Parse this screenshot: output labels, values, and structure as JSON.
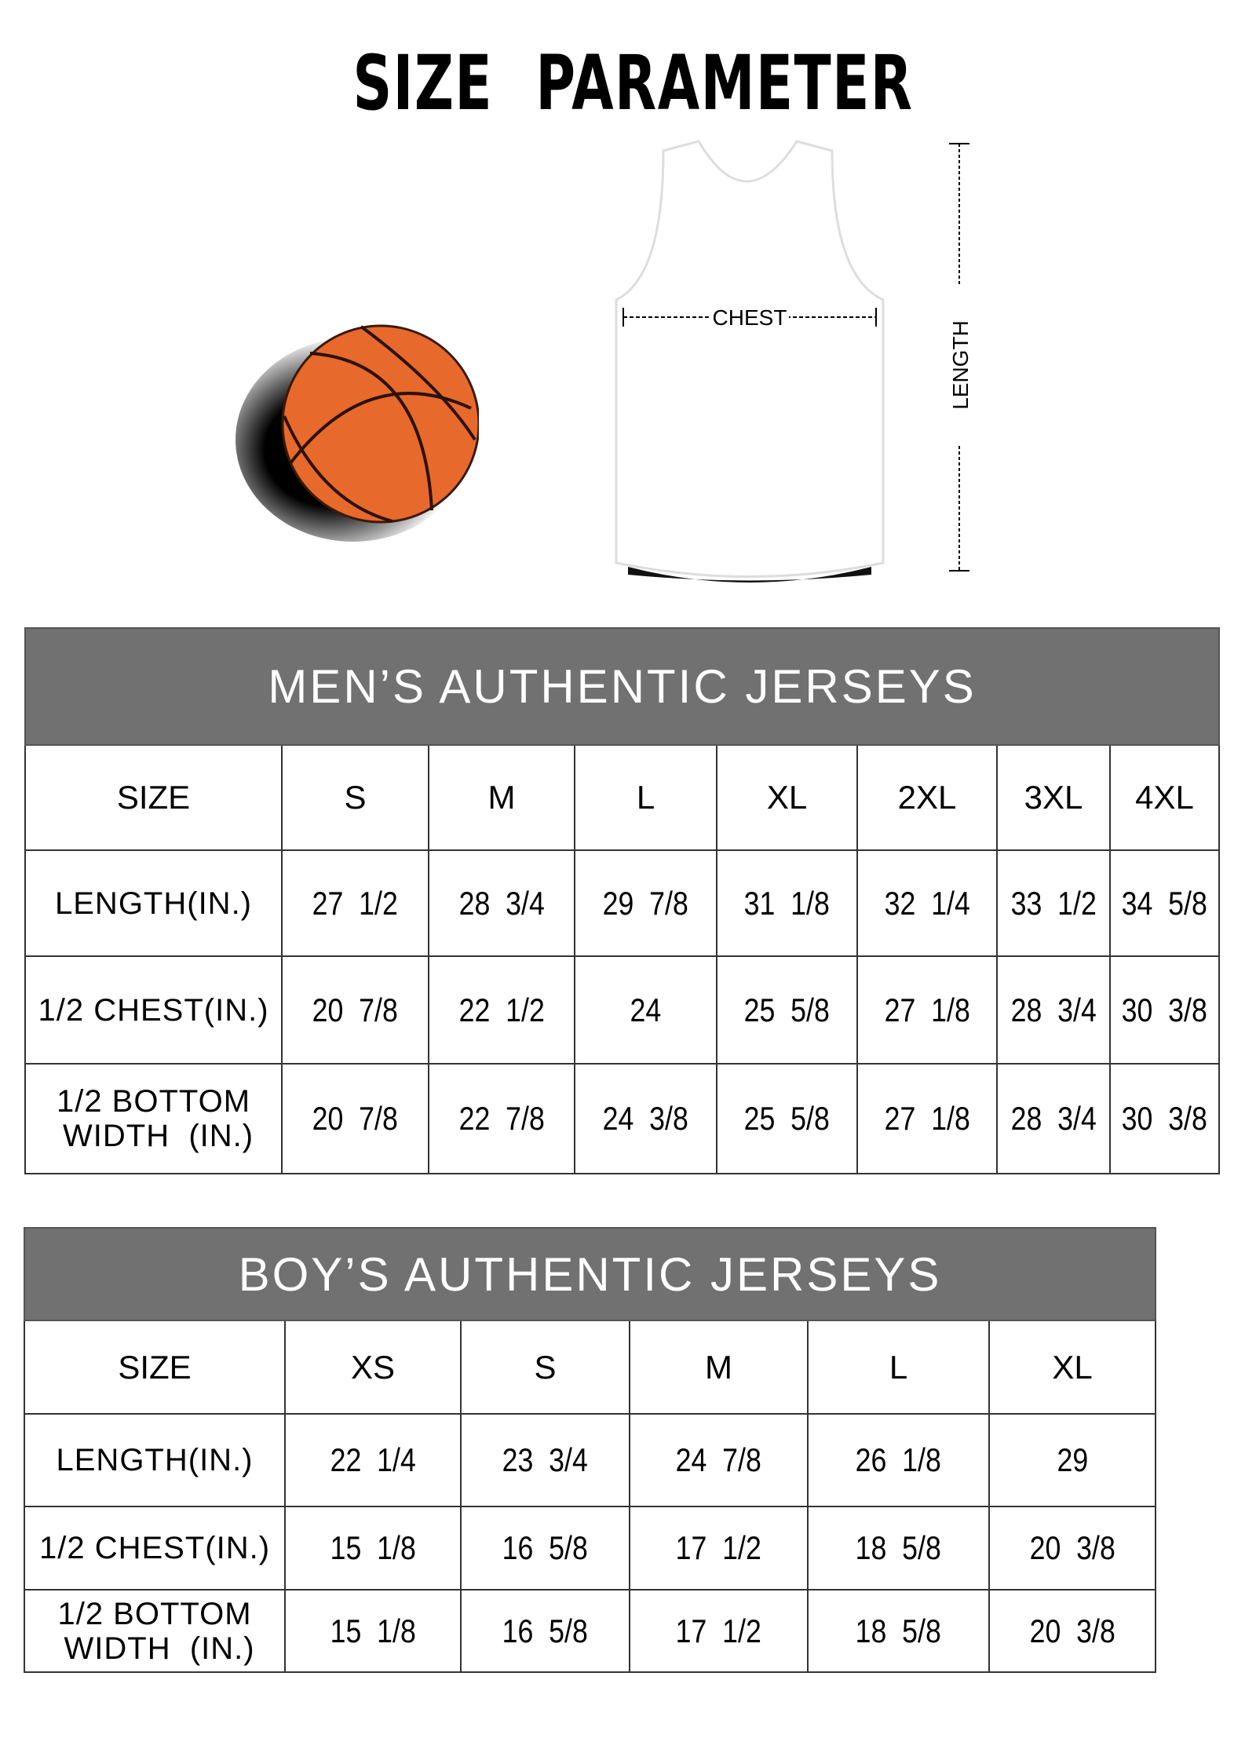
{
  "title": "SIZE PARAMETER",
  "diagram": {
    "chest_label": "CHEST",
    "length_label": "LENGTH",
    "ball_color": "#e8692c"
  },
  "mens": {
    "title": "MEN’S AUTHENTIC JERSEYS",
    "header": [
      "SIZE",
      "S",
      "M",
      "L",
      "XL",
      "2XL",
      "3XL",
      "4XL"
    ],
    "rows": [
      {
        "label": "LENGTH(IN.)",
        "values": [
          "27  1/2",
          "28  3/4",
          "29  7/8",
          "31  1/8",
          "32  1/4",
          "33  1/2",
          "34  5/8"
        ]
      },
      {
        "label": "1/2 CHEST(IN.)",
        "values": [
          "20  7/8",
          "22  1/2",
          "24",
          "25  5/8",
          "27  1/8",
          "28  3/4",
          "30  3/8"
        ]
      },
      {
        "label": "1/2 BOTTOM\n WIDTH  (IN.)",
        "values": [
          "20  7/8",
          "22  7/8",
          "24  3/8",
          "25  5/8",
          "27  1/8",
          "28  3/4",
          "30  3/8"
        ]
      }
    ]
  },
  "boys": {
    "title": "BOY’S AUTHENTIC JERSEYS",
    "header": [
      "SIZE",
      "XS",
      "S",
      "M",
      "L",
      "XL"
    ],
    "rows": [
      {
        "label": "LENGTH(IN.)",
        "values": [
          "22  1/4",
          "23  3/4",
          "24  7/8",
          "26  1/8",
          "29"
        ]
      },
      {
        "label": "1/2 CHEST(IN.)",
        "values": [
          "15  1/8",
          "16  5/8",
          "17  1/2",
          "18  5/8",
          "20  3/8"
        ]
      },
      {
        "label": "1/2 BOTTOM\n WIDTH  (IN.)",
        "values": [
          "15  1/8",
          "16  5/8",
          "17  1/2",
          "18  5/8",
          "20  3/8"
        ]
      }
    ]
  },
  "header_color": "#717171"
}
